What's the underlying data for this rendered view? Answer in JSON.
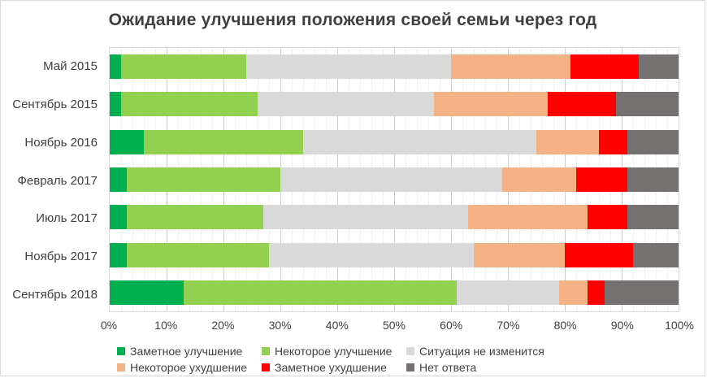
{
  "title": "Ожидание улучшения положения своей семьи через год",
  "chart_data": {
    "type": "bar",
    "orientation": "horizontal",
    "stacked": true,
    "title": "Ожидание улучшения положения своей семьи через год",
    "xlabel": "",
    "ylabel": "",
    "xlim": [
      0,
      100
    ],
    "grid": {
      "minor_step": 2,
      "major_step": 10
    },
    "legend_position": "bottom",
    "categories": [
      "Май 2015",
      "Сентябрь 2015",
      "Ноябрь 2016",
      "Февраль 2017",
      "Июль 2017",
      "Ноябрь 2017",
      "Сентябрь 2018"
    ],
    "series": [
      {
        "name": "Заметное улучшение",
        "color": "#00b050",
        "values": [
          2,
          2,
          6,
          3,
          3,
          3,
          13
        ]
      },
      {
        "name": "Некоторое улучшение",
        "color": "#92d050",
        "values": [
          22,
          24,
          28,
          27,
          24,
          25,
          48
        ]
      },
      {
        "name": "Ситуация не изменится",
        "color": "#d9d9d9",
        "values": [
          36,
          31,
          41,
          39,
          36,
          36,
          18
        ]
      },
      {
        "name": "Некоторое ухудшение",
        "color": "#f4b183",
        "values": [
          21,
          20,
          11,
          13,
          21,
          16,
          5
        ]
      },
      {
        "name": "Заметное ухудшение",
        "color": "#ff0000",
        "values": [
          12,
          12,
          5,
          9,
          7,
          12,
          3
        ]
      },
      {
        "name": "Нет ответа",
        "color": "#767171",
        "values": [
          7,
          11,
          9,
          9,
          9,
          8,
          13
        ]
      }
    ],
    "x_ticks": [
      "0%",
      "10%",
      "20%",
      "30%",
      "40%",
      "50%",
      "60%",
      "70%",
      "80%",
      "90%",
      "100%"
    ]
  }
}
